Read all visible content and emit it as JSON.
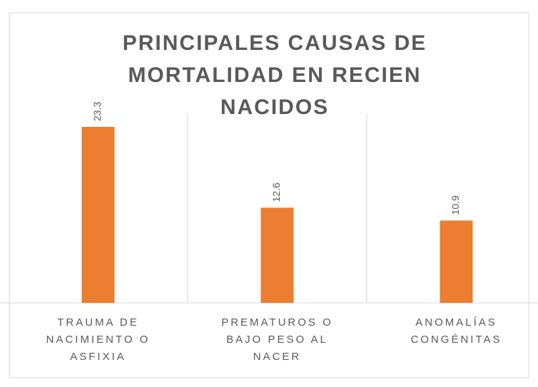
{
  "chart_data": {
    "type": "bar",
    "title": "PRINCIPALES CAUSAS DE MORTALIDAD EN RECIEN NACIDOS",
    "categories": [
      "TRAUMA DE NACIMIENTO O ASFIXIA",
      "PREMATUROS O BAJO PESO AL NACER",
      "ANOMALÍAS CONGÉNITAS"
    ],
    "values": [
      23.3,
      12.6,
      10.9
    ],
    "color": "#ed7d31",
    "ylim": [
      0,
      25
    ],
    "grid": false
  }
}
